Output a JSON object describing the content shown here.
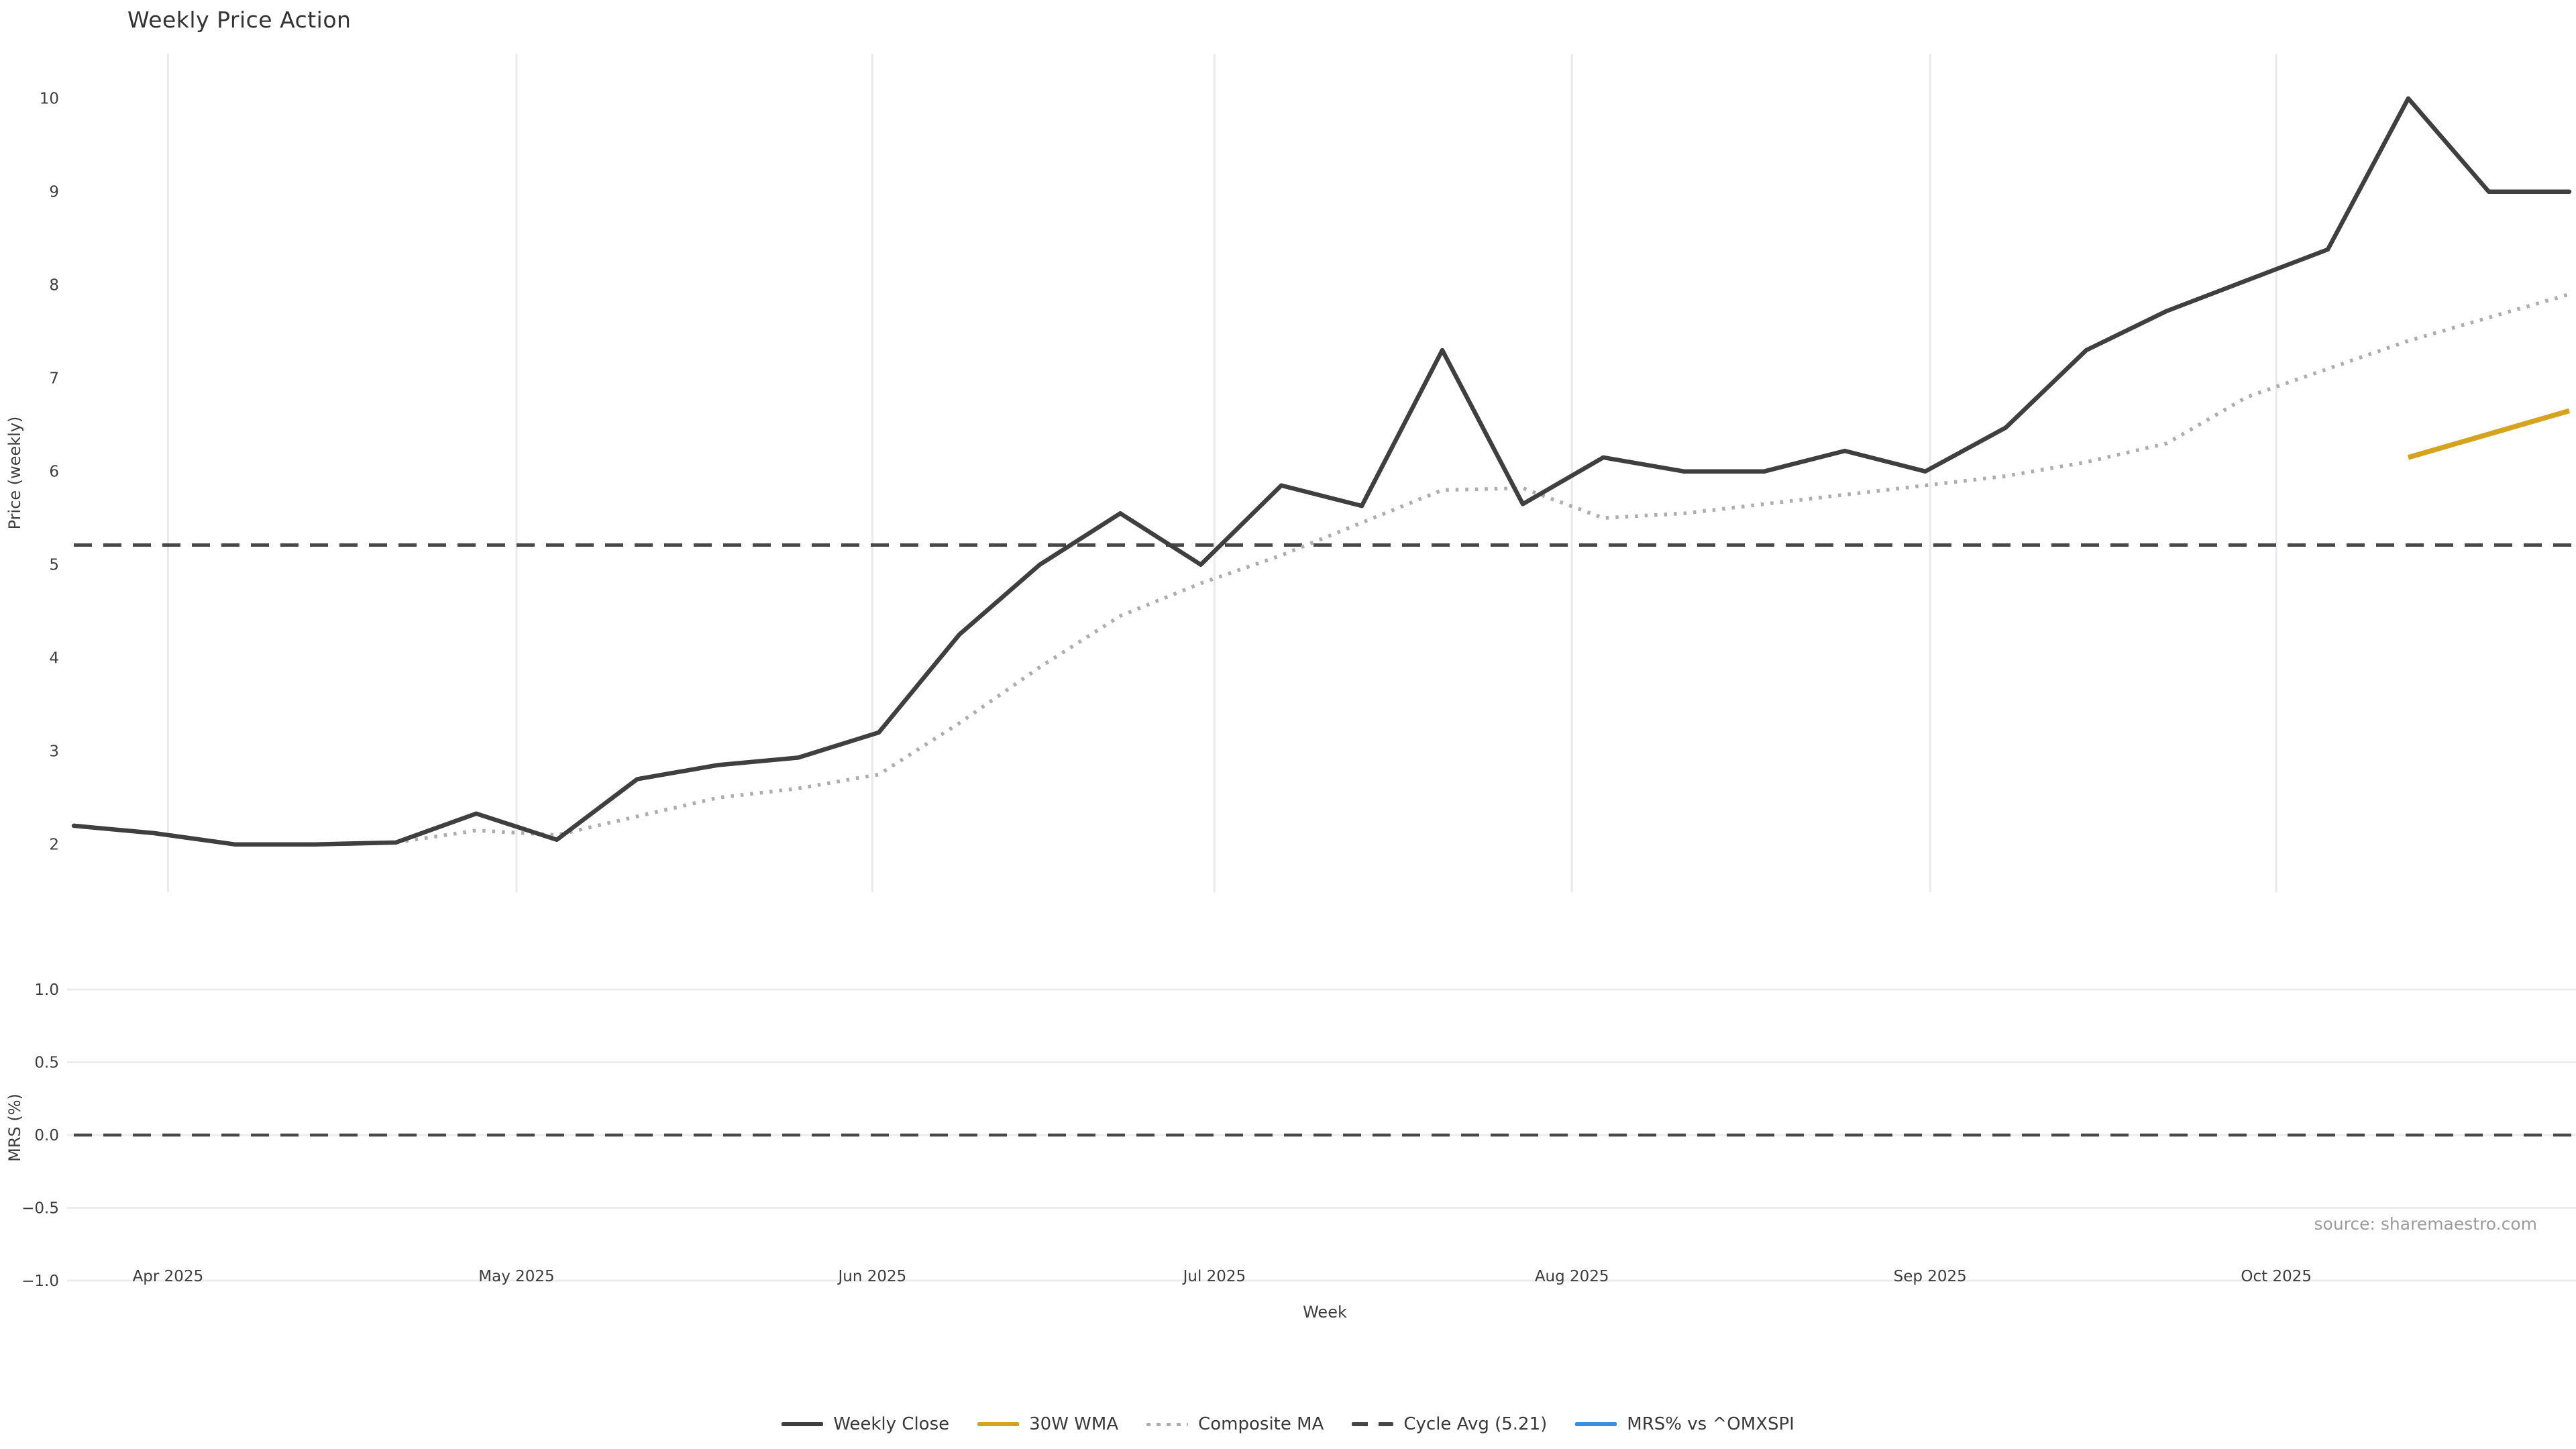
{
  "page": {
    "title": "Weekly Price Action",
    "source_note": "source: sharemaestro.com"
  },
  "colors": {
    "weekly_close": "#3f3f3f",
    "wma_30w": "#d6a31f",
    "composite_ma": "#adadad",
    "cycle_avg": "#474747",
    "mrs_line": "#3c8ee0",
    "month_grid": "#e9e9f1",
    "mrs_grid": "#ececec",
    "tick_text": "#3d3d3d",
    "source_text": "#9b9b9b"
  },
  "chart_data": {
    "type": "line",
    "title": "Weekly Price Action",
    "xlabel": "Week",
    "x_ticks": [
      {
        "label": "Apr 2025",
        "week": 1.17
      },
      {
        "label": "May 2025",
        "week": 5.5
      },
      {
        "label": "Jun 2025",
        "week": 9.92
      },
      {
        "label": "Jul 2025",
        "week": 14.17
      },
      {
        "label": "Aug 2025",
        "week": 18.61
      },
      {
        "label": "Sep 2025",
        "week": 23.06
      },
      {
        "label": "Oct 2025",
        "week": 27.36
      }
    ],
    "weeks_total": 32,
    "panels": [
      {
        "id": "price",
        "ylabel": "Price (weekly)",
        "ylim": [
          1.5,
          10.5
        ],
        "yticks": [
          2,
          3,
          4,
          5,
          6,
          7,
          8,
          9,
          10
        ],
        "grid": "vertical-months",
        "series": [
          {
            "name": "Weekly Close",
            "style": "solid",
            "color": "#3f3f3f",
            "start_week": 0,
            "values": [
              2.2,
              2.12,
              2.0,
              2.0,
              2.02,
              2.33,
              2.05,
              2.7,
              2.85,
              2.93,
              3.2,
              4.25,
              5.0,
              5.55,
              5.0,
              5.85,
              5.63,
              7.3,
              5.65,
              6.15,
              6.0,
              6.0,
              6.22,
              6.0,
              6.47,
              7.3,
              7.72,
              8.05,
              8.38,
              10.0,
              9.0,
              9.0
            ]
          },
          {
            "name": "Composite MA",
            "style": "dotted",
            "color": "#adadad",
            "start_week": 4,
            "values": [
              2.02,
              2.15,
              2.1,
              2.3,
              2.5,
              2.6,
              2.75,
              3.3,
              3.9,
              4.45,
              4.8,
              5.1,
              5.45,
              5.8,
              5.82,
              5.5,
              5.55,
              5.65,
              5.75,
              5.85,
              5.95,
              6.1,
              6.3,
              6.8,
              7.1,
              7.4,
              7.65,
              7.9
            ]
          },
          {
            "name": "30W WMA",
            "style": "solid",
            "color": "#d6a31f",
            "start_week": 29,
            "values": [
              6.15,
              6.4,
              6.65
            ]
          },
          {
            "name": "Cycle Avg",
            "style": "dashed",
            "color": "#474747",
            "constant": 5.21
          }
        ]
      },
      {
        "id": "mrs",
        "ylabel": "MRS (%)",
        "ylim": [
          -1.15,
          1.15
        ],
        "yticks": [
          1.0,
          0.5,
          0.0,
          -0.5,
          -1.0
        ],
        "zero_line": {
          "style": "dashed",
          "color": "#474747",
          "value": 0.0
        },
        "series": [
          {
            "name": "MRS% vs ^OMXSPI",
            "style": "solid",
            "color": "#3c8ee0",
            "values": []
          }
        ]
      }
    ],
    "legend": [
      {
        "label": "Weekly Close",
        "swatch": "solid-dark"
      },
      {
        "label": "30W WMA",
        "swatch": "solid-gold"
      },
      {
        "label": "Composite MA",
        "swatch": "dotted-gray"
      },
      {
        "label": "Cycle Avg (5.21)",
        "swatch": "dashed-dark"
      },
      {
        "label": "MRS% vs ^OMXSPI",
        "swatch": "solid-blue"
      }
    ],
    "legend_position": "bottom-center"
  }
}
